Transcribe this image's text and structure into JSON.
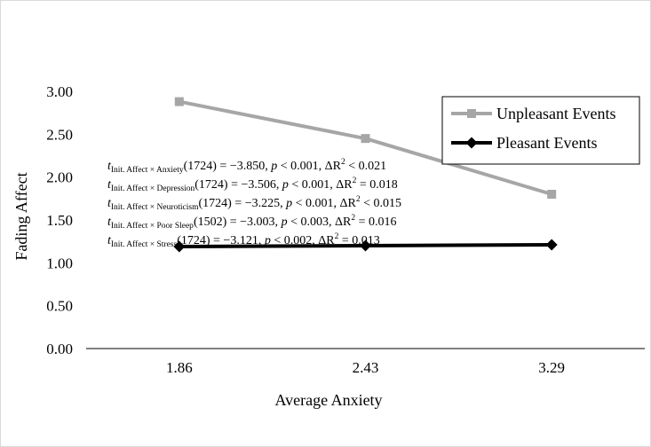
{
  "chart_data": {
    "type": "line",
    "xlabel": "Average Anxiety",
    "ylabel": "Fading Affect",
    "categories": [
      "1.86",
      "2.43",
      "3.29"
    ],
    "y_ticks": [
      "0.00",
      "0.50",
      "1.00",
      "1.50",
      "2.00",
      "2.50",
      "3.00"
    ],
    "ylim": [
      0,
      3
    ],
    "grid": false,
    "legend_position": "top-right",
    "series": [
      {
        "name": "Unpleasant Events",
        "values": [
          2.88,
          2.45,
          1.8
        ],
        "color": "#a6a6a6",
        "marker": "square"
      },
      {
        "name": "Pleasant Events",
        "values": [
          1.19,
          1.2,
          1.21
        ],
        "color": "#000000",
        "marker": "diamond"
      }
    ],
    "annotations": [
      {
        "t": "t",
        "subscript": "Init. Affect × Anxiety",
        "text": "(1724) = −3.850, ",
        "p": "p",
        "p_text": " < 0.001, ΔR",
        "sup": "2",
        "tail": " < 0.021"
      },
      {
        "t": "t",
        "subscript": "Init. Affect × Depression",
        "text": "(1724) = −3.506, ",
        "p": "p",
        "p_text": " < 0.001, ΔR",
        "sup": "2",
        "tail": " = 0.018"
      },
      {
        "t": "t",
        "subscript": "Init. Affect × Neuroticism",
        "text": "(1724) = −3.225, ",
        "p": "p",
        "p_text": " < 0.001, ΔR",
        "sup": "2",
        "tail": " < 0.015"
      },
      {
        "t": "t",
        "subscript": "Init. Affect × Poor Sleep",
        "text": "(1502) = −3.003, ",
        "p": "p",
        "p_text": " < 0.003, ΔR",
        "sup": "2",
        "tail": " = 0.016"
      },
      {
        "t": "t",
        "subscript": "Init. Affect × Stress",
        "text": "(1724) = −3.121, ",
        "p": "p",
        "p_text": " < 0.002, ΔR",
        "sup": "2",
        "tail": " = 0.013"
      }
    ]
  }
}
